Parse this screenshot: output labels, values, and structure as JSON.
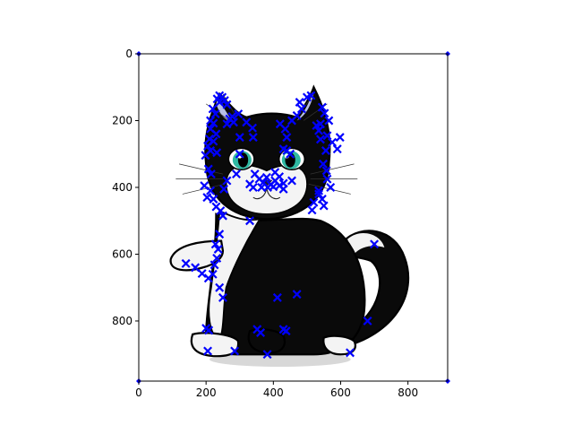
{
  "chart_data": {
    "type": "scatter",
    "title": "",
    "xlabel": "",
    "ylabel": "",
    "xlim": [
      0,
      918
    ],
    "ylim": [
      980,
      0
    ],
    "y_inverted": true,
    "grid": false,
    "legend": "none",
    "background_image": "cartoon-tuxedo-cat-sitting",
    "marker": "x",
    "marker_color": "#0000ff",
    "x_ticks": [
      0,
      200,
      400,
      600,
      800
    ],
    "y_ticks": [
      0,
      200,
      400,
      600,
      800
    ],
    "x_tick_labels": [
      "0",
      "200",
      "400",
      "600",
      "800"
    ],
    "y_tick_labels": [
      "0",
      "200",
      "400",
      "600",
      "800"
    ],
    "corner_points": [
      [
        0,
        0
      ],
      [
        918,
        0
      ],
      [
        0,
        980
      ],
      [
        918,
        980
      ]
    ],
    "points": [
      [
        240,
        125
      ],
      [
        248,
        130
      ],
      [
        233,
        135
      ],
      [
        255,
        140
      ],
      [
        240,
        145
      ],
      [
        262,
        152
      ],
      [
        220,
        165
      ],
      [
        228,
        180
      ],
      [
        213,
        200
      ],
      [
        222,
        208
      ],
      [
        213,
        225
      ],
      [
        230,
        240
      ],
      [
        210,
        255
      ],
      [
        222,
        262
      ],
      [
        205,
        276
      ],
      [
        213,
        290
      ],
      [
        232,
        296
      ],
      [
        198,
        304
      ],
      [
        207,
        345
      ],
      [
        215,
        360
      ],
      [
        195,
        395
      ],
      [
        213,
        410
      ],
      [
        203,
        430
      ],
      [
        222,
        435
      ],
      [
        230,
        458
      ],
      [
        243,
        470
      ],
      [
        250,
        485
      ],
      [
        253,
        405
      ],
      [
        262,
        380
      ],
      [
        290,
        360
      ],
      [
        262,
        210
      ],
      [
        270,
        195
      ],
      [
        278,
        188
      ],
      [
        296,
        180
      ],
      [
        282,
        205
      ],
      [
        300,
        250
      ],
      [
        300,
        300
      ],
      [
        320,
        205
      ],
      [
        338,
        222
      ],
      [
        340,
        250
      ],
      [
        345,
        360
      ],
      [
        358,
        375
      ],
      [
        370,
        385
      ],
      [
        380,
        370
      ],
      [
        392,
        392
      ],
      [
        405,
        380
      ],
      [
        418,
        395
      ],
      [
        430,
        388
      ],
      [
        330,
        390
      ],
      [
        340,
        400
      ],
      [
        365,
        400
      ],
      [
        383,
        400
      ],
      [
        400,
        398
      ],
      [
        330,
        500
      ],
      [
        418,
        368
      ],
      [
        405,
        355
      ],
      [
        420,
        210
      ],
      [
        435,
        225
      ],
      [
        440,
        250
      ],
      [
        440,
        290
      ],
      [
        450,
        300
      ],
      [
        430,
        285
      ],
      [
        455,
        200
      ],
      [
        470,
        185
      ],
      [
        484,
        165
      ],
      [
        500,
        130
      ],
      [
        512,
        125
      ],
      [
        478,
        145
      ],
      [
        528,
        215
      ],
      [
        540,
        210
      ],
      [
        535,
        230
      ],
      [
        540,
        256
      ],
      [
        560,
        245
      ],
      [
        575,
        265
      ],
      [
        590,
        285
      ],
      [
        598,
        250
      ],
      [
        565,
        200
      ],
      [
        552,
        178
      ],
      [
        545,
        160
      ],
      [
        556,
        290
      ],
      [
        548,
        330
      ],
      [
        558,
        350
      ],
      [
        560,
        375
      ],
      [
        570,
        400
      ],
      [
        535,
        420
      ],
      [
        520,
        445
      ],
      [
        515,
        468
      ],
      [
        550,
        455
      ],
      [
        545,
        435
      ],
      [
        535,
        410
      ],
      [
        455,
        380
      ],
      [
        430,
        405
      ],
      [
        240,
        540
      ],
      [
        228,
        570
      ],
      [
        236,
        585
      ],
      [
        232,
        612
      ],
      [
        225,
        632
      ],
      [
        220,
        660
      ],
      [
        207,
        672
      ],
      [
        240,
        700
      ],
      [
        250,
        730
      ],
      [
        140,
        628
      ],
      [
        168,
        640
      ],
      [
        188,
        658
      ],
      [
        200,
        822
      ],
      [
        208,
        828
      ],
      [
        205,
        890
      ],
      [
        285,
        890
      ],
      [
        352,
        825
      ],
      [
        362,
        835
      ],
      [
        430,
        825
      ],
      [
        438,
        830
      ],
      [
        382,
        900
      ],
      [
        412,
        730
      ],
      [
        470,
        720
      ],
      [
        628,
        895
      ],
      [
        680,
        800
      ],
      [
        700,
        570
      ]
    ]
  }
}
